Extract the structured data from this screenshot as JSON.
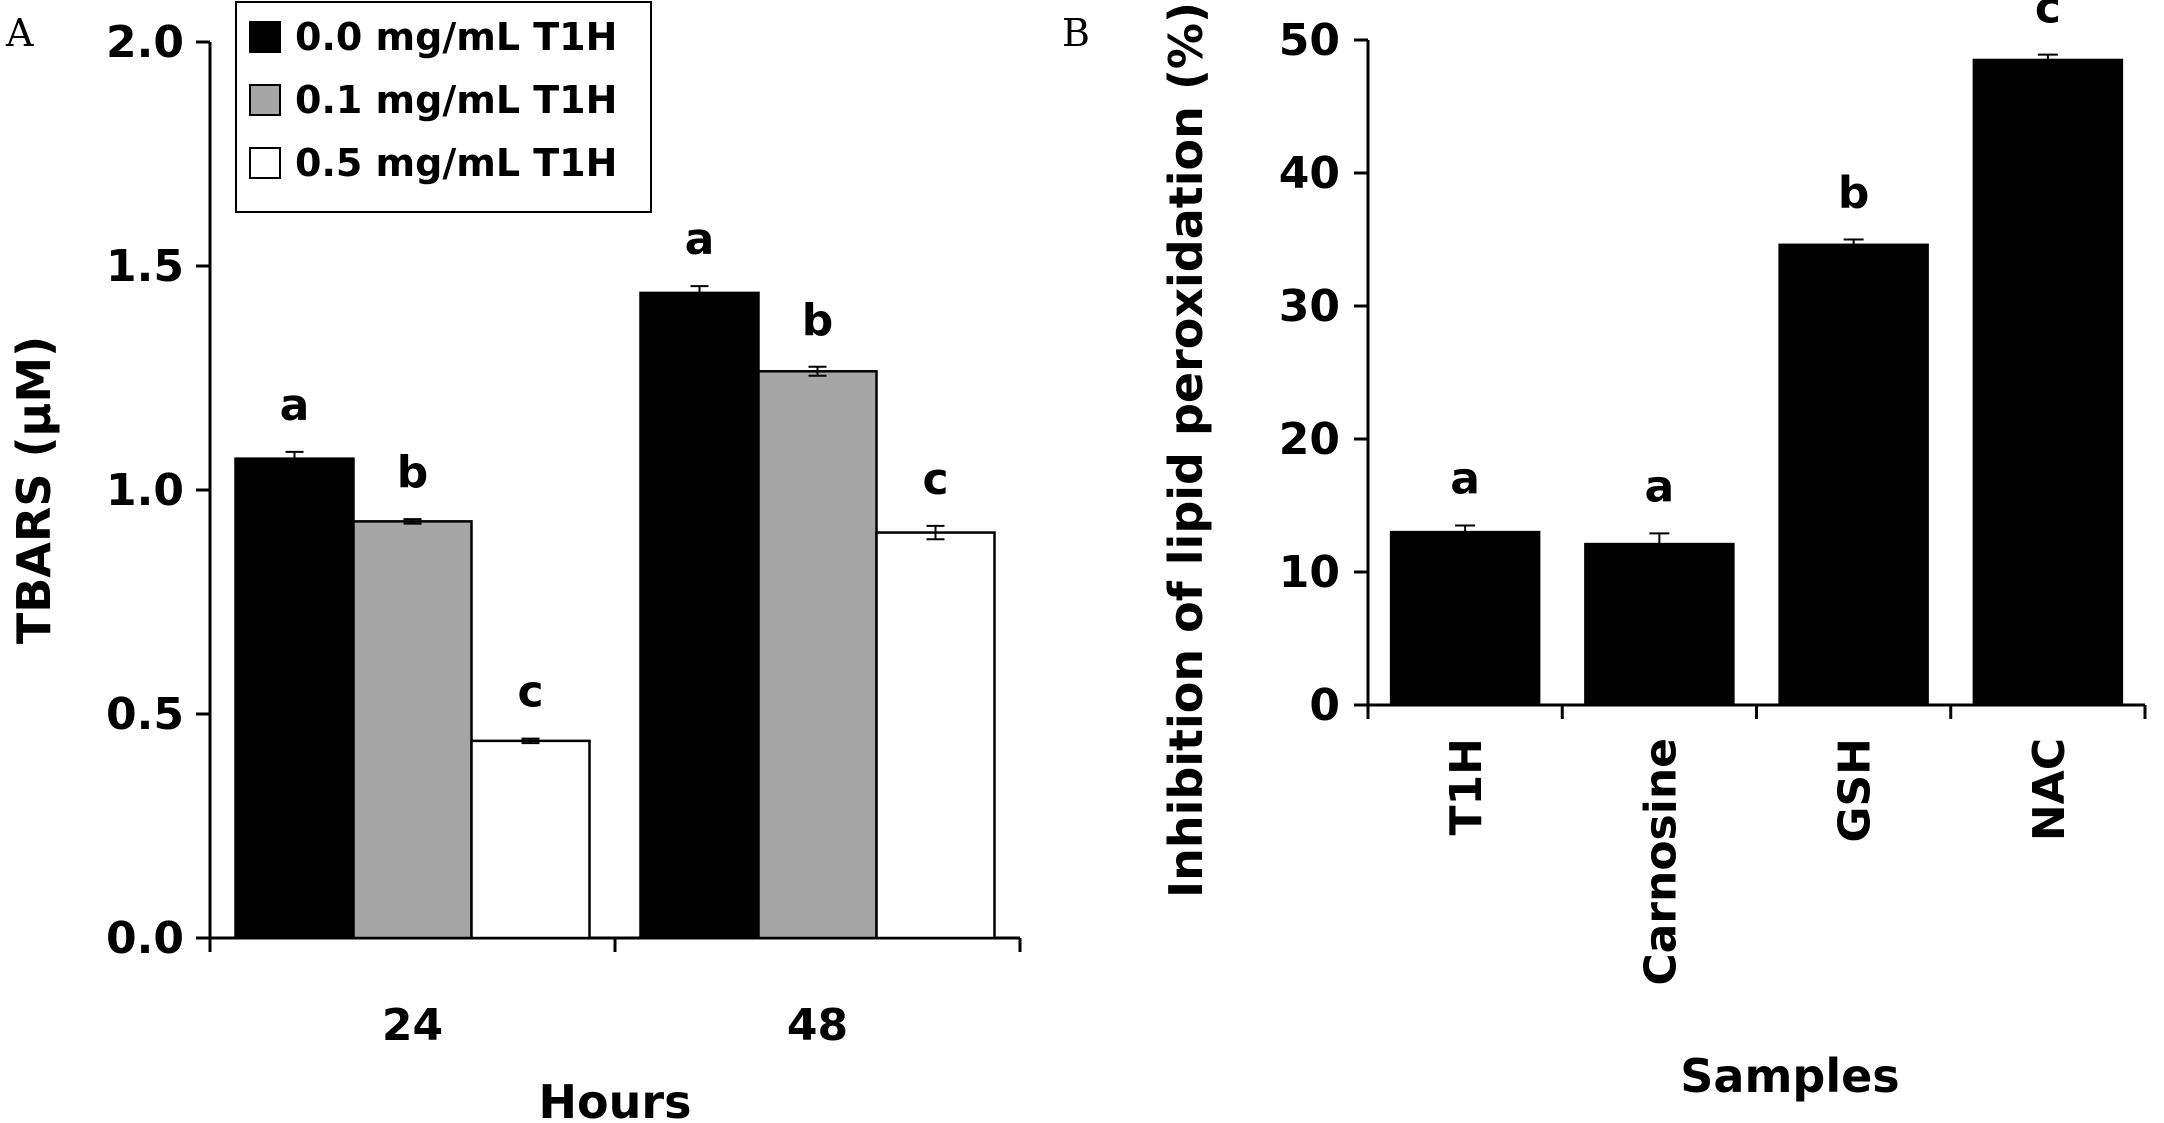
{
  "panels": {
    "a": {
      "label": "A"
    },
    "b": {
      "label": "B"
    }
  },
  "chart_data": [
    {
      "type": "bar",
      "panel": "A",
      "categories": [
        "24",
        "48"
      ],
      "series": [
        {
          "name": "0.0 mg/mL T1H",
          "color": "#000000",
          "values": [
            1.07,
            1.44
          ],
          "errors": [
            0.015,
            0.015
          ],
          "letters": [
            "a",
            "a"
          ]
        },
        {
          "name": "0.1 mg/mL T1H",
          "color": "#a6a6a6",
          "values": [
            0.93,
            1.265
          ],
          "errors": [
            0.005,
            0.01
          ],
          "letters": [
            "b",
            "b"
          ]
        },
        {
          "name": "0.5 mg/mL T1H",
          "color": "#ffffff",
          "values": [
            0.44,
            0.905
          ],
          "errors": [
            0.005,
            0.015
          ],
          "letters": [
            "c",
            "c"
          ]
        }
      ],
      "xlabel": "Hours",
      "ylabel": "TBARS (μM)",
      "ylim": [
        0,
        2.0
      ],
      "yticks": [
        "0.0",
        "0.5",
        "1.0",
        "1.5",
        "2.0"
      ],
      "legend": "top-left",
      "grid": false
    },
    {
      "type": "bar",
      "panel": "B",
      "categories": [
        "T1H",
        "Carnosine",
        "GSH",
        "NAC"
      ],
      "values": [
        13.0,
        12.1,
        34.6,
        48.5
      ],
      "errors": [
        0.5,
        0.8,
        0.4,
        0.4
      ],
      "letters": [
        "a",
        "a",
        "b",
        "c"
      ],
      "color": "#000000",
      "xlabel": "Samples",
      "ylabel": "Inhibition of lipid peroxidation (%)",
      "ylim": [
        0,
        50
      ],
      "yticks": [
        "0",
        "10",
        "20",
        "30",
        "40",
        "50"
      ],
      "grid": false
    }
  ]
}
